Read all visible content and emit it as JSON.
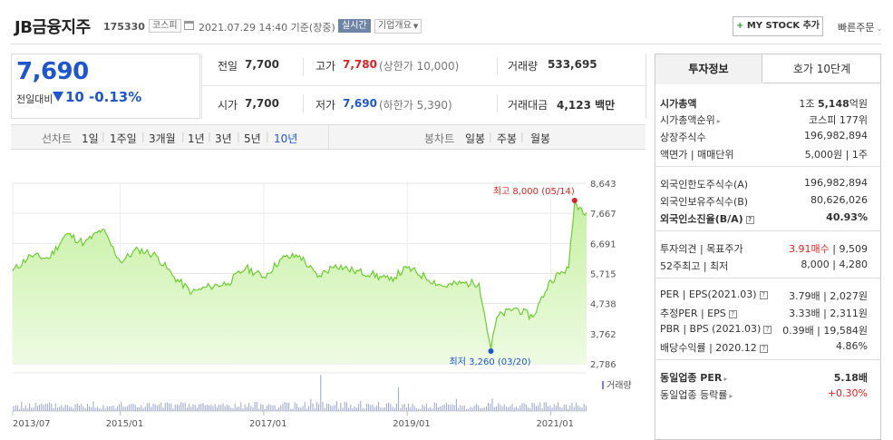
{
  "header": {
    "company": "JB금융지주",
    "code": "175330",
    "market": "코스피",
    "datetime": "2021.07.29 14:40 기준(장중)",
    "realtime_badge": "실시간",
    "company_info": "기업개요",
    "mystock_plus": "+",
    "mystock_label": "MY STOCK 추가",
    "quick_order": "빠른주문"
  },
  "price": {
    "current": "7,690",
    "change_label": "전일대비",
    "change_value": "10",
    "change_pct": "-0.13%"
  },
  "stats": {
    "prev_label": "전일",
    "prev_value": "7,700",
    "high_label": "고가",
    "high_value": "7,780",
    "upper_limit": "(상한가 10,000)",
    "volume_label": "거래량",
    "volume_value": "533,695",
    "open_label": "시가",
    "open_value": "7,700",
    "low_label": "저가",
    "low_value": "7,690",
    "lower_limit": "(하한가 5,390)",
    "amount_label": "거래대금",
    "amount_value": "4,123 백만"
  },
  "periods": {
    "line_label": "선차트",
    "line_items": [
      "1일",
      "1주일",
      "3개월",
      "1년",
      "3년",
      "5년",
      "10년"
    ],
    "line_active": "10년",
    "candle_label": "봉차트",
    "candle_items": [
      "일봉",
      "주봉",
      "월봉"
    ]
  },
  "chart_data": {
    "type": "area",
    "y_ticks": [
      "8,643",
      "7,667",
      "6,691",
      "5,715",
      "4,738",
      "3,762",
      "2,786"
    ],
    "x_ticks": [
      "2013/07",
      "2015/01",
      "2017/01",
      "2019/01",
      "2021/01"
    ],
    "ylim": [
      2786,
      8643
    ],
    "x": [
      "2013/07",
      "2013/10",
      "2014/01",
      "2014/04",
      "2014/07",
      "2014/10",
      "2015/01",
      "2015/04",
      "2015/07",
      "2015/10",
      "2016/01",
      "2016/04",
      "2016/07",
      "2016/10",
      "2017/01",
      "2017/04",
      "2017/07",
      "2017/10",
      "2018/01",
      "2018/04",
      "2018/07",
      "2018/10",
      "2019/01",
      "2019/04",
      "2019/07",
      "2019/10",
      "2020/01",
      "2020/03",
      "2020/04",
      "2020/07",
      "2020/10",
      "2021/01",
      "2021/04",
      "2021/05",
      "2021/07"
    ],
    "values": [
      5800,
      6300,
      6200,
      7000,
      6700,
      7150,
      6100,
      6500,
      6300,
      5600,
      5100,
      5300,
      5400,
      5900,
      5600,
      6200,
      6300,
      5600,
      6000,
      5800,
      5700,
      5500,
      5900,
      5600,
      5300,
      5400,
      5400,
      3260,
      4300,
      4600,
      4300,
      5500,
      5900,
      8000,
      7690
    ],
    "max_label": "최고 8,000 (05/14)",
    "min_label": "최저 3,260 (03/20)",
    "volume_legend": "거래량",
    "grid": true
  },
  "panel": {
    "tab_invest": "투자정보",
    "tab_hoga": "호가 10단계",
    "market_cap_label": "시가총액",
    "market_cap_pre": "1조 ",
    "market_cap_value": "5,148",
    "market_cap_unit": "억원",
    "cap_rank_label": "시가총액순위",
    "cap_rank_value": "코스피 177위",
    "shares_label": "상장주식수",
    "shares_value": "196,982,894",
    "face_label": "액면가 | 매매단위",
    "face_value": "5,000원 | 1주",
    "foreign_limit_label": "외국인한도주식수(A)",
    "foreign_limit_value": "196,982,894",
    "foreign_hold_label": "외국인보유주식수(B)",
    "foreign_hold_value": "80,626,026",
    "foreign_ratio_label": "외국인소진율(B/A)",
    "foreign_ratio_value": "40.93%",
    "opinion_label": "투자의견 | 목표주가",
    "opinion_value": "3.91매수",
    "target_value": " | 9,509",
    "range_label": "52주최고 | 최저",
    "range_value": "8,000 | 4,280",
    "per_label": "PER | EPS(2021.03)",
    "per_value": "3.79배 | 2,027원",
    "est_label": "추정PER | EPS",
    "est_value": "3.33배 | 2,311원",
    "pbr_label": "PBR | BPS (2021.03)",
    "pbr_value": "0.39배 | 19,584원",
    "div_label": "배당수익률 | 2020.12",
    "div_value": "4.86%",
    "sector_per_label": "동일업종 PER",
    "sector_per_value": "5.18배",
    "sector_chg_label": "동일업종 등락률",
    "sector_chg_value": "+0.30%",
    "q": "?"
  }
}
